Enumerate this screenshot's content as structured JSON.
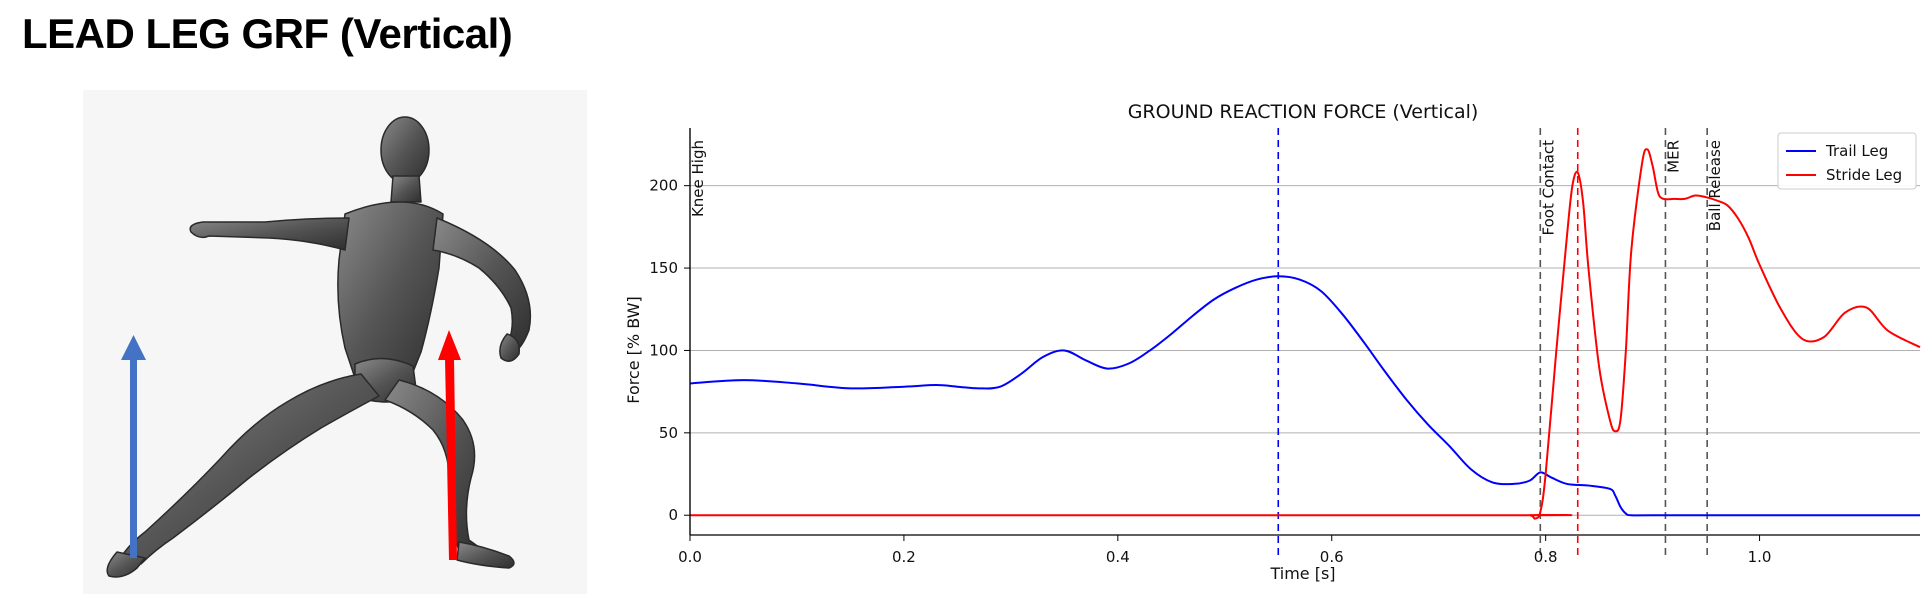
{
  "page": {
    "title": "LEAD LEG GRF (Vertical)"
  },
  "figure": {
    "image": "3d-pitcher-mannequin",
    "arrows": [
      {
        "name": "trail-leg-force-arrow",
        "color": "#4472c4"
      },
      {
        "name": "stride-leg-force-arrow",
        "color": "#ff0000"
      }
    ]
  },
  "chart_data": {
    "type": "line",
    "title": "GROUND REACTION FORCE (Vertical)",
    "xlabel": "Time [s]",
    "ylabel": "Force [% BW]",
    "xlim": [
      0,
      1.15
    ],
    "ylim": [
      -12,
      235
    ],
    "xticks": [
      0.0,
      0.2,
      0.4,
      0.6,
      0.8,
      1.0
    ],
    "xtick_labels": [
      "0.0",
      "0.2",
      "0.4",
      "0.6",
      "0.8",
      "1.0"
    ],
    "yticks": [
      0,
      50,
      100,
      150,
      200
    ],
    "ytick_labels": [
      "0",
      "50",
      "100",
      "150",
      "200"
    ],
    "grid": "horizontal",
    "legend_position": "top-right",
    "events": [
      {
        "label": "Knee High",
        "x": 0.0,
        "color": "#000000",
        "style": "solid"
      },
      {
        "label": "",
        "x": 0.55,
        "color": "#0000ff",
        "style": "dashed"
      },
      {
        "label": "Foot Contact",
        "x": 0.795,
        "color": "#555555",
        "style": "dashed"
      },
      {
        "label": "",
        "x": 0.83,
        "color": "#ff0000",
        "style": "dashed"
      },
      {
        "label": "MER",
        "x": 0.912,
        "color": "#555555",
        "style": "dashed"
      },
      {
        "label": "Ball Release",
        "x": 0.951,
        "color": "#555555",
        "style": "dashed"
      }
    ],
    "series": [
      {
        "name": "Trail Leg",
        "color": "#0000ff",
        "x": [
          0.0,
          0.05,
          0.1,
          0.15,
          0.2,
          0.23,
          0.25,
          0.27,
          0.29,
          0.31,
          0.33,
          0.35,
          0.37,
          0.39,
          0.41,
          0.43,
          0.45,
          0.47,
          0.49,
          0.51,
          0.53,
          0.55,
          0.57,
          0.59,
          0.61,
          0.63,
          0.65,
          0.67,
          0.69,
          0.71,
          0.73,
          0.75,
          0.77,
          0.785,
          0.795,
          0.805,
          0.82,
          0.84,
          0.86,
          0.865,
          0.87,
          0.875,
          0.88,
          0.9,
          1.0,
          1.15
        ],
        "values": [
          80,
          82,
          80,
          77,
          78,
          79,
          78,
          77,
          78,
          86,
          96,
          100,
          94,
          89,
          92,
          100,
          110,
          121,
          131,
          138,
          143,
          145,
          143,
          136,
          122,
          105,
          87,
          70,
          55,
          42,
          28,
          20,
          19,
          21,
          26,
          23,
          19,
          18,
          16,
          12,
          5,
          1,
          0,
          0,
          0,
          0
        ]
      },
      {
        "name": "Stride Leg",
        "color": "#ff0000",
        "x": [
          0.0,
          0.76,
          0.785,
          0.79,
          0.795,
          0.8,
          0.81,
          0.82,
          0.825,
          0.83,
          0.835,
          0.84,
          0.85,
          0.86,
          0.865,
          0.87,
          0.875,
          0.88,
          0.89,
          0.895,
          0.9,
          0.905,
          0.91,
          0.92,
          0.93,
          0.94,
          0.95,
          0.96,
          0.97,
          0.98,
          0.99,
          1.0,
          1.02,
          1.04,
          1.06,
          1.08,
          1.1,
          1.12,
          1.15
        ],
        "values": [
          0,
          0,
          0,
          -2,
          2,
          25,
          100,
          170,
          200,
          208,
          190,
          150,
          90,
          58,
          51,
          58,
          100,
          160,
          213,
          222,
          212,
          196,
          192,
          192,
          192,
          194,
          193,
          191,
          188,
          180,
          168,
          152,
          125,
          107,
          108,
          123,
          126,
          112,
          102
        ]
      }
    ]
  }
}
